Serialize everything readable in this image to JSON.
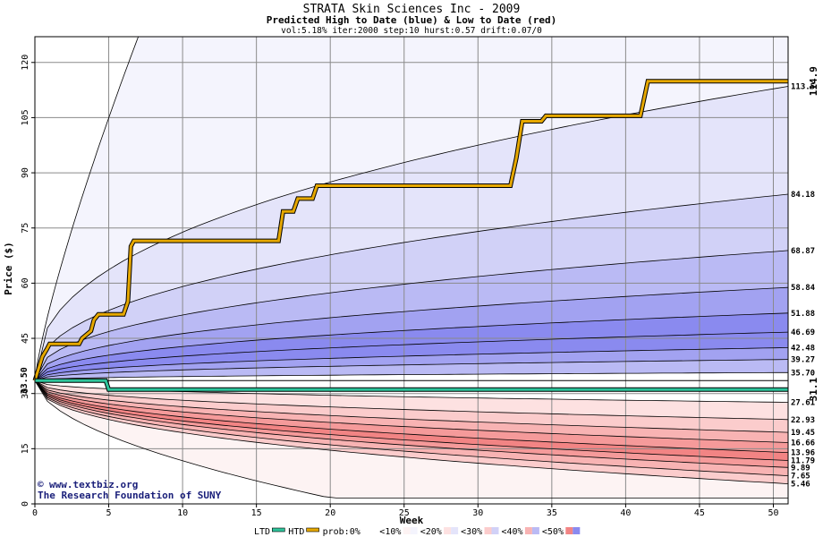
{
  "colors": {
    "band_blue": [
      "#f4f4fd",
      "#e4e4fa",
      "#d1d1f7",
      "#babaf4",
      "#a2a2f1",
      "#8a8aef"
    ],
    "band_red": [
      "#fdf3f3",
      "#fde1e1",
      "#fbcccc",
      "#f8b3b3",
      "#f59a9a",
      "#f28484"
    ],
    "htd_line": "#e6a800",
    "ltd_line": "#2ec49b",
    "grid": "#8a8a8a",
    "high_label": "#b07a00",
    "low_label": "#1f8f57",
    "watermark": "#1a1f7a"
  },
  "chart_data": {
    "type": "area",
    "title": "STRATA Skin Sciences Inc - 2009",
    "subtitle": "Predicted High to Date (blue) &  Low to Date (red)",
    "params": "vol:5.18% iter:2000 step:10 hurst:0.57 drift:0.07/0",
    "xlabel": "Week",
    "ylabel": "Price ($)",
    "xlim": [
      0,
      51
    ],
    "ylim": [
      0,
      127
    ],
    "xticks": [
      0,
      5,
      10,
      15,
      20,
      25,
      30,
      35,
      40,
      45,
      50
    ],
    "yticks": [
      0,
      15,
      30,
      45,
      60,
      75,
      90,
      105,
      120
    ],
    "grid": true,
    "start_price": "33.50",
    "predicted_high_levels": [
      {
        "label": "113.5",
        "value": 113.5
      },
      {
        "label": "84.18",
        "value": 84.18
      },
      {
        "label": "68.87",
        "value": 68.87
      },
      {
        "label": "58.84",
        "value": 58.84
      },
      {
        "label": "51.88",
        "value": 51.88
      },
      {
        "label": "46.69",
        "value": 46.69
      },
      {
        "label": "42.48",
        "value": 42.48
      },
      {
        "label": "39.27",
        "value": 39.27
      },
      {
        "label": "35.70",
        "value": 35.7
      }
    ],
    "predicted_low_levels": [
      {
        "label": "27.61",
        "value": 27.61
      },
      {
        "label": "22.93",
        "value": 22.93
      },
      {
        "label": "19.45",
        "value": 19.45
      },
      {
        "label": "16.66",
        "value": 16.66
      },
      {
        "label": "13.96",
        "value": 13.96
      },
      {
        "label": "11.79",
        "value": 11.79
      },
      {
        "label": "9.89",
        "value": 9.89
      },
      {
        "label": "7.65",
        "value": 7.65
      },
      {
        "label": "5.46",
        "value": 5.46
      }
    ],
    "actual_high_to_date": {
      "label": "114.9",
      "points": [
        [
          0,
          33.5
        ],
        [
          0.5,
          40
        ],
        [
          0.8,
          42
        ],
        [
          1,
          43.5
        ],
        [
          3,
          43.5
        ],
        [
          3.2,
          45
        ],
        [
          3.8,
          47
        ],
        [
          4,
          50
        ],
        [
          4.3,
          51.5
        ],
        [
          6,
          51.5
        ],
        [
          6.3,
          55
        ],
        [
          6.5,
          70
        ],
        [
          6.7,
          71.5
        ],
        [
          16.5,
          71.5
        ],
        [
          16.8,
          79.5
        ],
        [
          17.5,
          79.5
        ],
        [
          17.8,
          83
        ],
        [
          18.8,
          83
        ],
        [
          19.1,
          86.5
        ],
        [
          32.2,
          86.5
        ],
        [
          32.6,
          94
        ],
        [
          33,
          104
        ],
        [
          34.3,
          104
        ],
        [
          34.6,
          105.5
        ],
        [
          41,
          105.5
        ],
        [
          41.5,
          114.9
        ],
        [
          51,
          114.9
        ]
      ]
    },
    "actual_low_to_date": {
      "label": "31.1",
      "points": [
        [
          0,
          33.5
        ],
        [
          4.8,
          33.5
        ],
        [
          5,
          31.1
        ],
        [
          51,
          31.1
        ]
      ]
    },
    "legend": [
      "LTD",
      "HTD",
      "prob:0%",
      "<10%",
      "<20%",
      "<30%",
      "<40%",
      "<50%"
    ]
  },
  "watermark": {
    "copyright": "www.textbiz.org",
    "org": "The Research Foundation of SUNY"
  }
}
